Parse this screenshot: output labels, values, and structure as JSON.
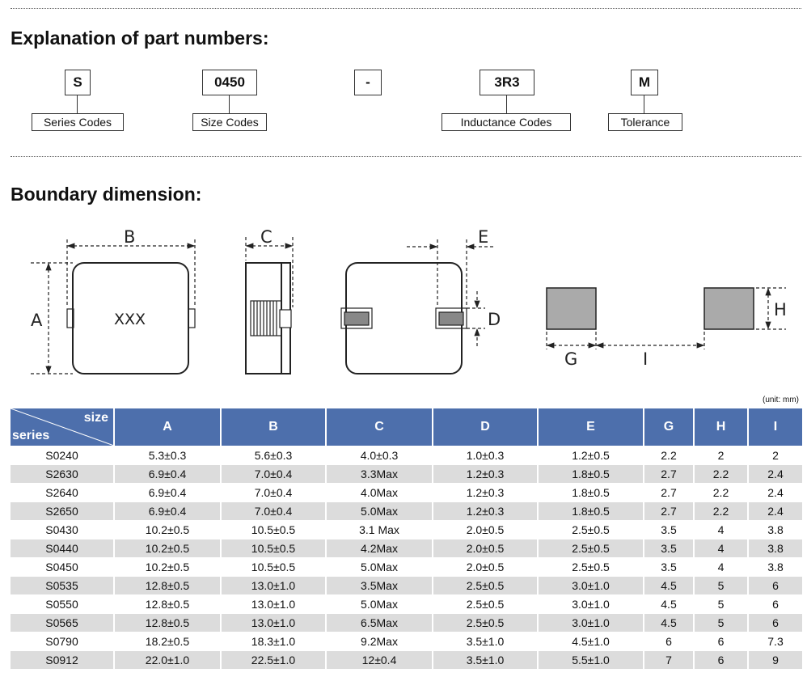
{
  "section1_title": "Explanation of part numbers:",
  "part_number": [
    {
      "code": "S",
      "label": "Series Codes"
    },
    {
      "code": "0450",
      "label": "Size Codes"
    },
    {
      "code": "-",
      "label": ""
    },
    {
      "code": "3R3",
      "label": "Inductance Codes"
    },
    {
      "code": "M",
      "label": "Tolerance"
    }
  ],
  "section2_title": "Boundary dimension:",
  "diagram": {
    "A": "A",
    "B": "B",
    "C": "C",
    "D": "D",
    "E": "E",
    "G": "G",
    "H": "H",
    "I": "I",
    "marking": "XXX"
  },
  "unit_note": "(unit: mm)",
  "table": {
    "corner_top": "size",
    "corner_bottom": "series",
    "headers": [
      "A",
      "B",
      "C",
      "D",
      "E",
      "G",
      "H",
      "I"
    ],
    "rows": [
      [
        "S0240",
        "5.3±0.3",
        "5.6±0.3",
        "4.0±0.3",
        "1.0±0.3",
        "1.2±0.5",
        "2.2",
        "2",
        "2"
      ],
      [
        "S2630",
        "6.9±0.4",
        "7.0±0.4",
        "3.3Max",
        "1.2±0.3",
        "1.8±0.5",
        "2.7",
        "2.2",
        "2.4"
      ],
      [
        "S2640",
        "6.9±0.4",
        "7.0±0.4",
        "4.0Max",
        "1.2±0.3",
        "1.8±0.5",
        "2.7",
        "2.2",
        "2.4"
      ],
      [
        "S2650",
        "6.9±0.4",
        "7.0±0.4",
        "5.0Max",
        "1.2±0.3",
        "1.8±0.5",
        "2.7",
        "2.2",
        "2.4"
      ],
      [
        "S0430",
        "10.2±0.5",
        "10.5±0.5",
        "3.1 Max",
        "2.0±0.5",
        "2.5±0.5",
        "3.5",
        "4",
        "3.8"
      ],
      [
        "S0440",
        "10.2±0.5",
        "10.5±0.5",
        "4.2Max",
        "2.0±0.5",
        "2.5±0.5",
        "3.5",
        "4",
        "3.8"
      ],
      [
        "S0450",
        "10.2±0.5",
        "10.5±0.5",
        "5.0Max",
        "2.0±0.5",
        "2.5±0.5",
        "3.5",
        "4",
        "3.8"
      ],
      [
        "S0535",
        "12.8±0.5",
        "13.0±1.0",
        "3.5Max",
        "2.5±0.5",
        "3.0±1.0",
        "4.5",
        "5",
        "6"
      ],
      [
        "S0550",
        "12.8±0.5",
        "13.0±1.0",
        "5.0Max",
        "2.5±0.5",
        "3.0±1.0",
        "4.5",
        "5",
        "6"
      ],
      [
        "S0565",
        "12.8±0.5",
        "13.0±1.0",
        "6.5Max",
        "2.5±0.5",
        "3.0±1.0",
        "4.5",
        "5",
        "6"
      ],
      [
        "S0790",
        "18.2±0.5",
        "18.3±1.0",
        "9.2Max",
        "3.5±1.0",
        "4.5±1.0",
        "6",
        "6",
        "7.3"
      ],
      [
        "S0912",
        "22.0±1.0",
        "22.5±1.0",
        "12±0.4",
        "3.5±1.0",
        "5.5±1.0",
        "7",
        "6",
        "9"
      ]
    ]
  }
}
